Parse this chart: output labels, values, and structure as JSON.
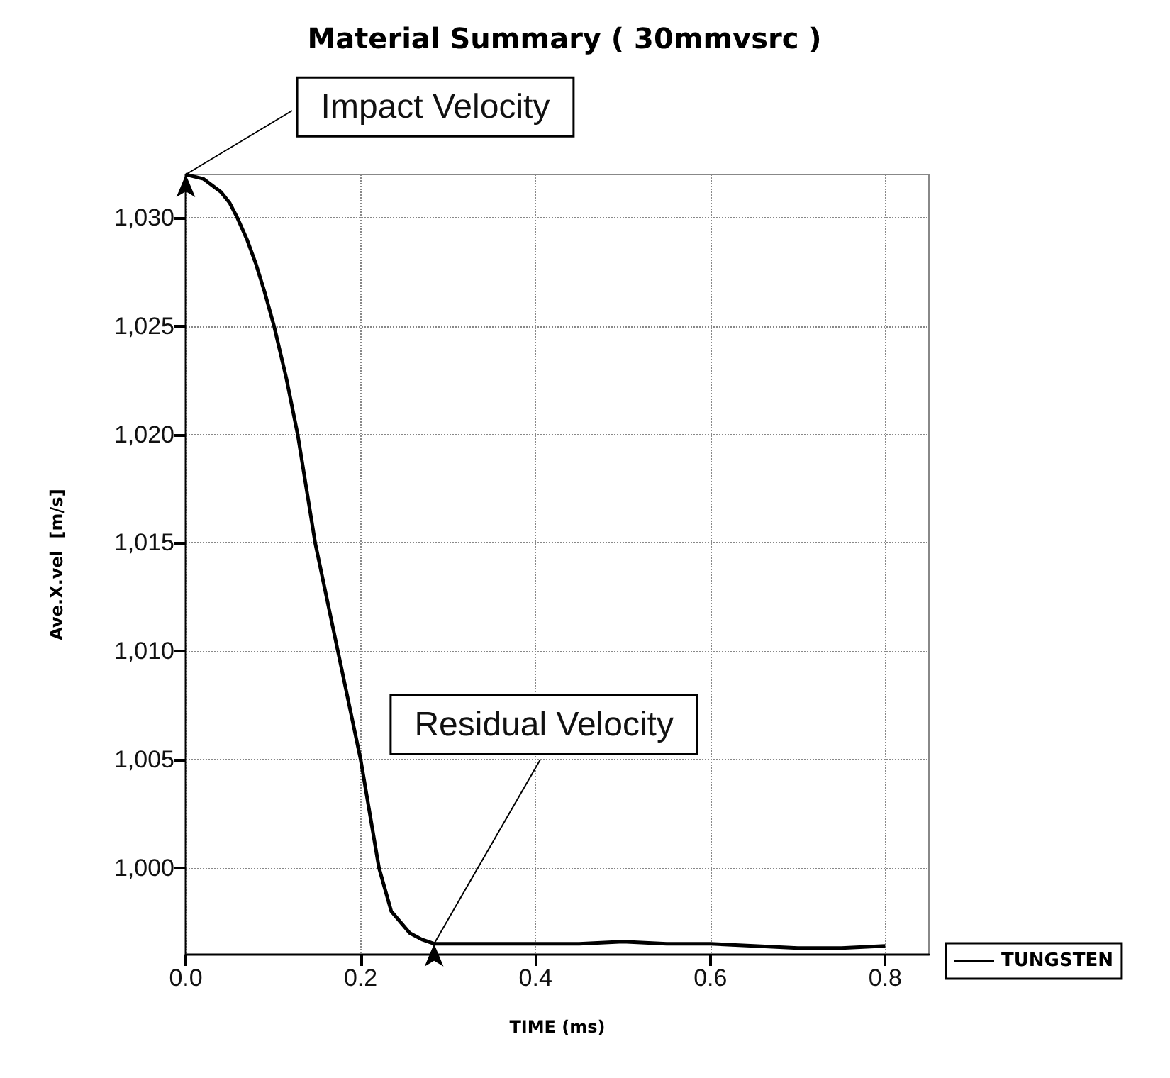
{
  "chart_data": {
    "type": "line",
    "title": "Material Summary ( 30mmvsrc )",
    "xlabel": "TIME (ms)",
    "ylabel": "Ave.X.vel  [m/s]",
    "x": [
      0,
      0.01,
      0.02,
      0.03,
      0.04,
      0.05,
      0.059,
      0.07,
      0.08,
      0.09,
      0.101,
      0.115,
      0.128,
      0.148,
      0.174,
      0.2,
      0.221,
      0.235,
      0.256,
      0.27,
      0.284,
      0.3,
      0.35,
      0.4,
      0.45,
      0.5,
      0.55,
      0.6,
      0.65,
      0.7,
      0.75,
      0.8
    ],
    "series": [
      {
        "name": "TUNGSTEN",
        "color": "#000000",
        "values": [
          1032,
          1031.9,
          1031.8,
          1031.5,
          1031.2,
          1030.7,
          1030,
          1029,
          1027.9,
          1026.6,
          1025,
          1022.6,
          1020,
          1015,
          1010,
          1005,
          1000,
          998,
          997,
          996.7,
          996.5,
          996.5,
          996.5,
          996.5,
          996.5,
          996.6,
          996.5,
          996.5,
          996.4,
          996.3,
          996.3,
          996.4
        ]
      }
    ],
    "xlim": [
      0,
      0.85
    ],
    "ylim": [
      996,
      1032
    ],
    "xticks": [
      {
        "value": 0,
        "label": "0.0"
      },
      0.2,
      0.4,
      0.6,
      0.8
    ],
    "yticks": [
      {
        "value": 1000,
        "label": "1,000"
      },
      {
        "value": 1005,
        "label": "1,005"
      },
      {
        "value": 1010,
        "label": "1,010"
      },
      {
        "value": 1015,
        "label": "1,015"
      },
      {
        "value": 1020,
        "label": "1,020"
      },
      {
        "value": 1025,
        "label": "1,025"
      },
      {
        "value": 1030,
        "label": "1,030"
      }
    ],
    "annotations": [
      {
        "text": "Impact Velocity",
        "x": 0,
        "y": 1032
      },
      {
        "text": "Residual Velocity",
        "x": 0.284,
        "y": 996.5
      }
    ],
    "grid": true,
    "legend": "bottom right",
    "marker": "none",
    "line_style": "solid"
  }
}
